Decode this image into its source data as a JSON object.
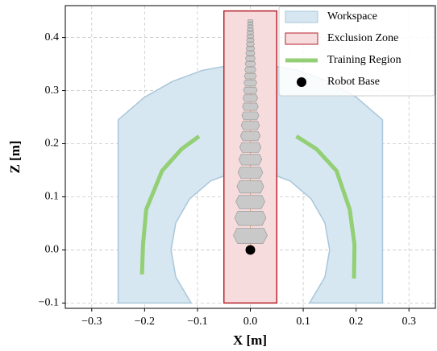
{
  "chart_data": {
    "type": "region",
    "xlabel": "X [m]",
    "ylabel": "Z [m]",
    "xlim": [
      -0.35,
      0.35
    ],
    "ylim": [
      -0.11,
      0.46
    ],
    "xticks": [
      {
        "value": -0.3,
        "label": "−0.3"
      },
      {
        "value": -0.2,
        "label": "−0.2"
      },
      {
        "value": -0.1,
        "label": "−0.1"
      },
      {
        "value": 0,
        "label": "0.0"
      },
      0.1,
      0.2,
      0.3
    ],
    "yticks": [
      {
        "value": -0.1,
        "label": "−0.1"
      },
      {
        "value": 0,
        "label": "0.0"
      },
      0.1,
      0.2,
      0.3,
      0.4
    ],
    "grid": true,
    "legend": "upper right",
    "series": [
      {
        "name": "Workspace",
        "type": "area",
        "color": "#d7e7f1",
        "edgecolor": "#a8c6da",
        "x": [
          -0.25,
          -0.25,
          -0.201,
          -0.148,
          -0.091,
          -0.031,
          0.031,
          0.091,
          0.148,
          0.201,
          0.25,
          0.25,
          0.112,
          0.141,
          0.15,
          0.141,
          0.115,
          0.075,
          0.026,
          -0.026,
          -0.075,
          -0.115,
          -0.141,
          -0.15,
          -0.141,
          -0.112
        ],
        "y": [
          -0.1,
          0.245,
          0.287,
          0.317,
          0.338,
          0.349,
          0.349,
          0.338,
          0.317,
          0.287,
          0.245,
          -0.1,
          -0.1,
          -0.051,
          0,
          0.051,
          0.096,
          0.13,
          0.148,
          0.148,
          0.13,
          0.096,
          0.051,
          0,
          -0.051,
          -0.1
        ]
      },
      {
        "name": "Exclusion Zone",
        "type": "area",
        "color": "#f7dcdd",
        "edgecolor": "#b5222b",
        "x": [
          -0.05,
          0.05,
          0.05,
          -0.05
        ],
        "y": [
          -0.1,
          -0.1,
          0.45,
          0.45
        ]
      },
      {
        "name": "Training Region",
        "type": "line",
        "color": "#93cf75",
        "pieces": [
          {
            "x": [
              -0.205,
              -0.203,
              -0.197,
              -0.167,
              -0.13,
              -0.097
            ],
            "y": [
              -0.046,
              0.01,
              0.076,
              0.149,
              0.19,
              0.214
            ]
          },
          {
            "x": [
              0.196,
              0.197,
              0.188,
              0.163,
              0.125,
              0.087
            ],
            "y": [
              -0.054,
              0.01,
              0.076,
              0.149,
              0.19,
              0.214
            ]
          }
        ]
      },
      {
        "name": "Robot Base",
        "type": "scatter",
        "color": "#000000",
        "x": [
          0
        ],
        "y": [
          0
        ]
      }
    ]
  }
}
